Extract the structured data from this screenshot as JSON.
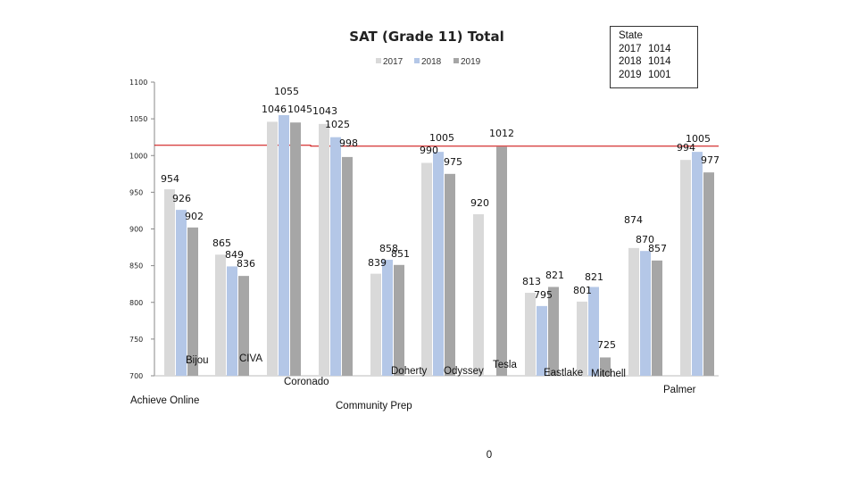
{
  "chart_data": {
    "type": "bar",
    "title": "SAT (Grade 11) Total",
    "xlabel": "",
    "ylabel": "",
    "ylim": [
      700,
      1100
    ],
    "yticks": [
      700,
      750,
      800,
      850,
      900,
      950,
      1000,
      1050,
      1100
    ],
    "grid": false,
    "legend_placement": "top",
    "reference_line": {
      "value": 1014,
      "color": "#cc0000"
    },
    "categories": [
      "Achieve Online",
      "Bijou",
      "CIVA",
      "Coronado",
      "Community Prep",
      "Doherty",
      "Odyssey",
      "Tesla",
      "Eastlake",
      "Mitchell",
      "Palmer"
    ],
    "series": [
      {
        "name": "2017",
        "color": "#d9d9d9",
        "values": [
          954,
          865,
          1046,
          1043,
          839,
          990,
          920,
          813,
          801,
          874,
          994
        ]
      },
      {
        "name": "2018",
        "color": "#b4c7e7",
        "values": [
          926,
          849,
          1055,
          1025,
          858,
          1005,
          null,
          795,
          821,
          870,
          1005
        ]
      },
      {
        "name": "2019",
        "color": "#a6a6a6",
        "values": [
          902,
          836,
          1045,
          998,
          851,
          975,
          1012,
          821,
          725,
          857,
          977
        ]
      }
    ],
    "extra_text": "0"
  },
  "state_box": {
    "title": "State",
    "rows": [
      {
        "year": "2017",
        "value": "1014"
      },
      {
        "year": "2018",
        "value": "1014"
      },
      {
        "year": "2019",
        "value": "1001"
      }
    ]
  }
}
